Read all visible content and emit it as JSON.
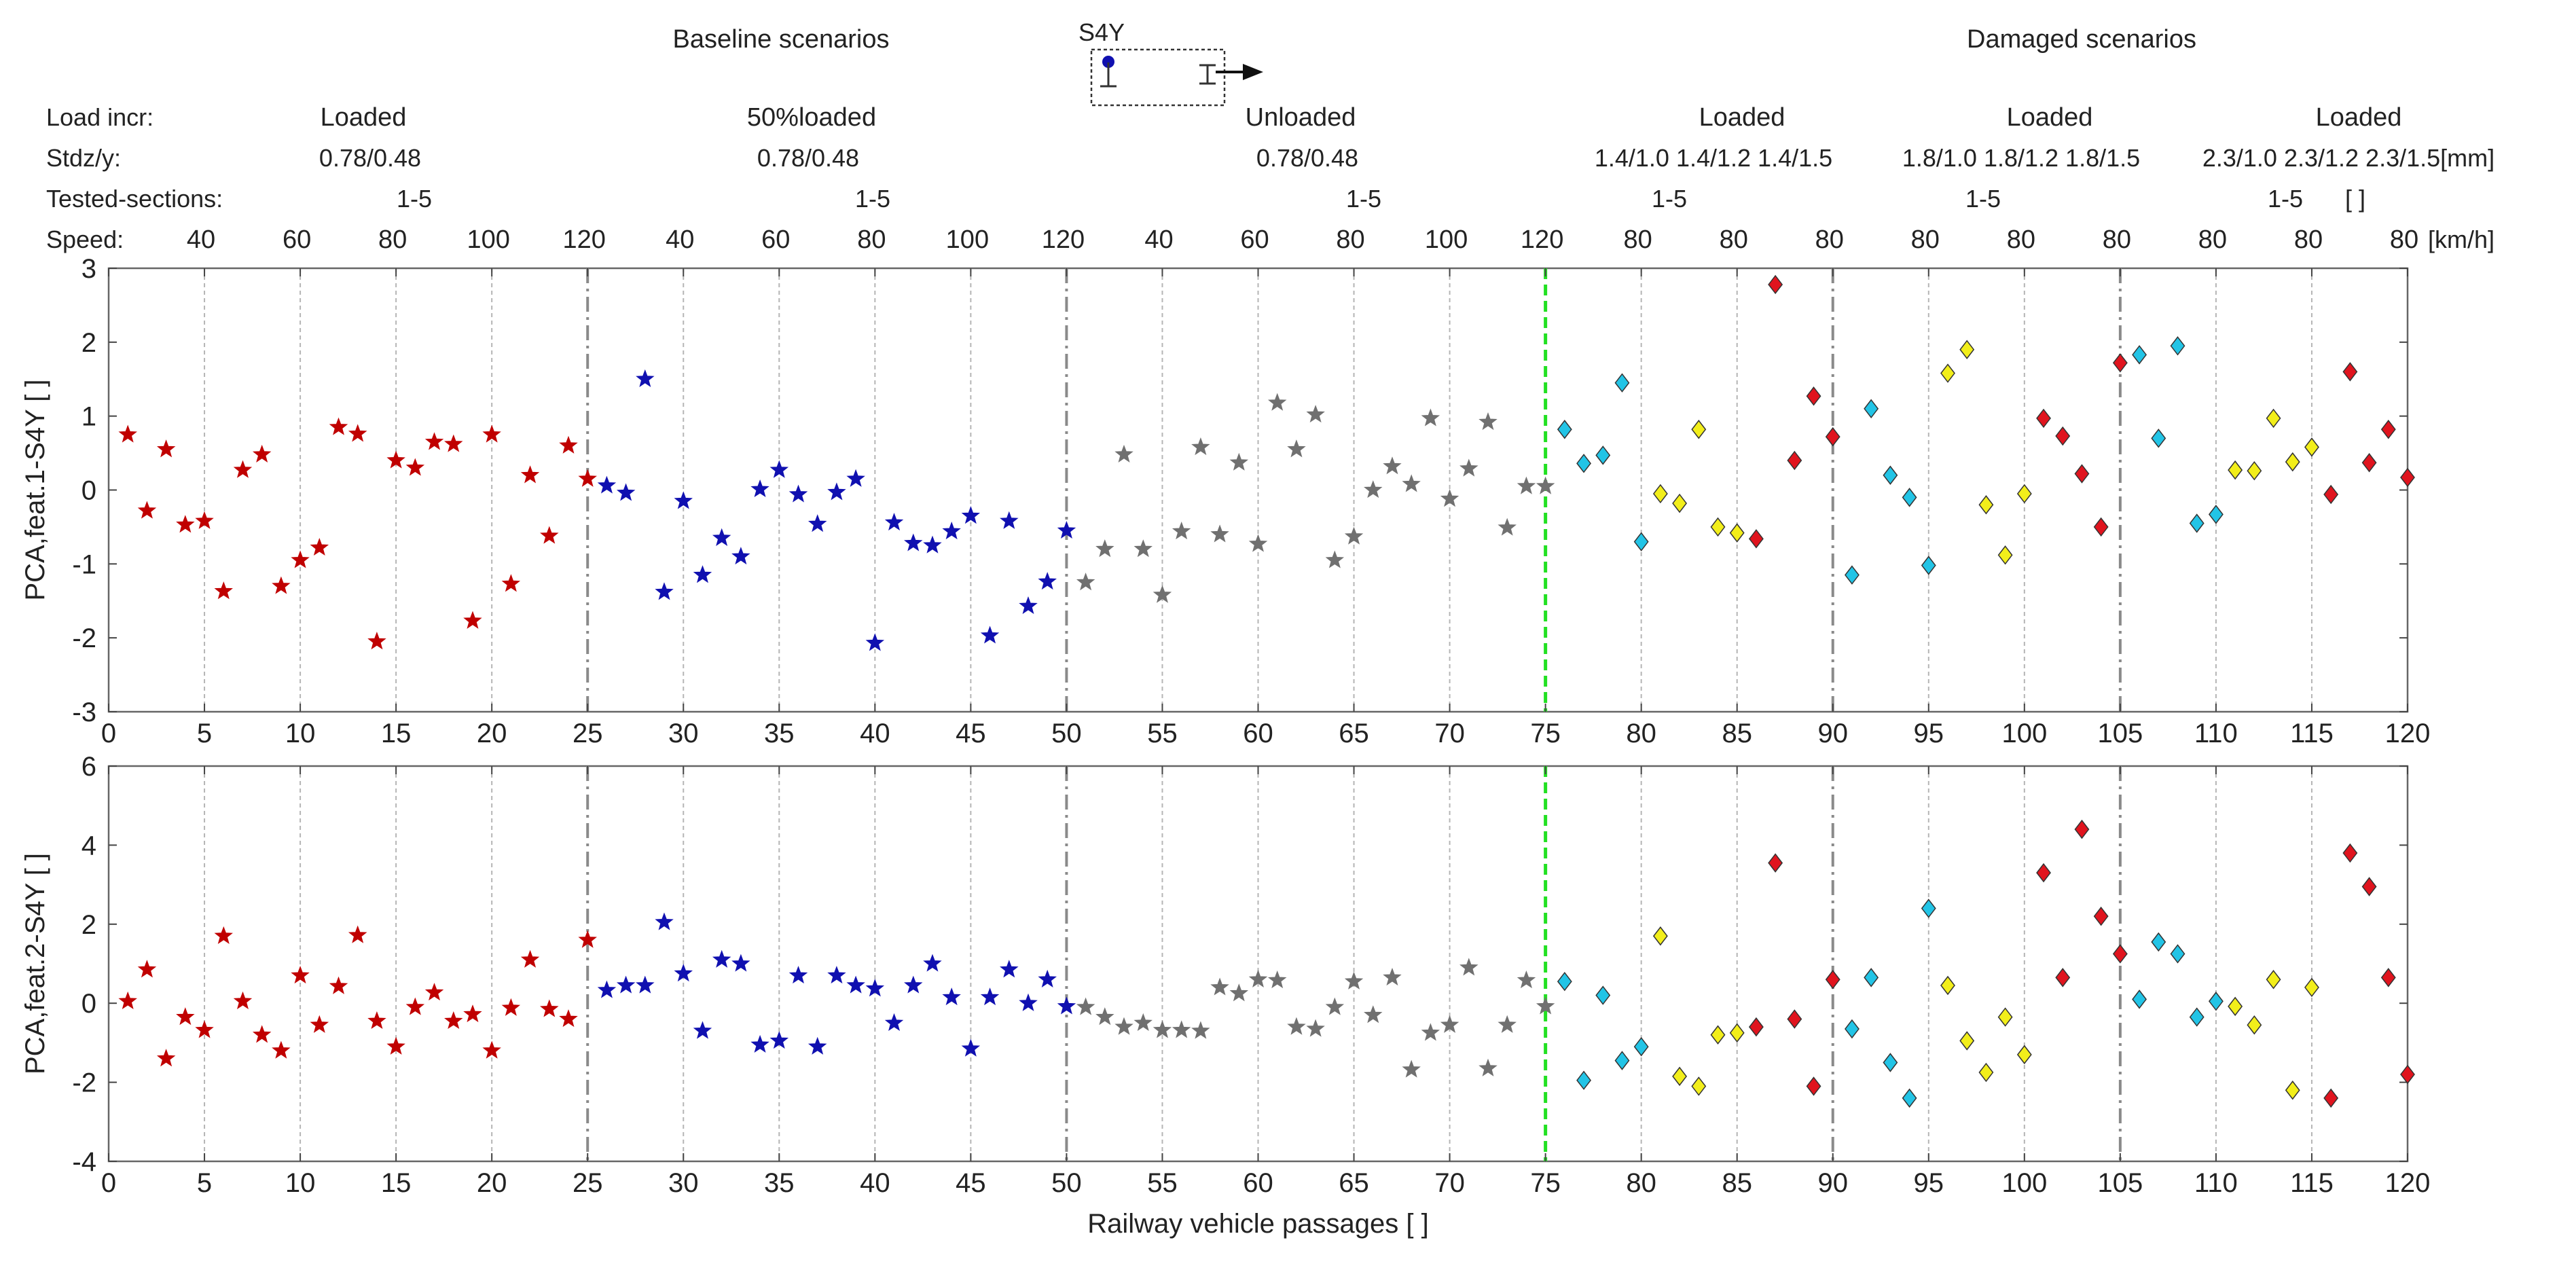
{
  "header": {
    "baseline_title": "Baseline scenarios",
    "damaged_title": "Damaged scenarios",
    "sensor_label": "S4Y",
    "row_labels": {
      "load": "Load incr:",
      "stdz": "Stdz/y:",
      "sections": "Tested-sections:",
      "speed": "Speed:"
    },
    "groups": [
      {
        "load": "Loaded",
        "stdz": "0.78/0.48",
        "sections": "1-5"
      },
      {
        "load": "50%loaded",
        "stdz": "0.78/0.48",
        "sections": "1-5"
      },
      {
        "load": "Unloaded",
        "stdz": "0.78/0.48",
        "sections": "1-5"
      },
      {
        "load": "Loaded",
        "stdz": "1.4/1.0 1.4/1.2 1.4/1.5",
        "sections": "1-5"
      },
      {
        "load": "Loaded",
        "stdz": "1.8/1.0 1.8/1.2 1.8/1.5",
        "sections": "1-5"
      },
      {
        "load": "Loaded",
        "stdz": "2.3/1.0 2.3/1.2 2.3/1.5[mm]",
        "sections": "1-5"
      }
    ],
    "sections_unit": "[ ]",
    "speed_labels": [
      "40",
      "60",
      "80",
      "100",
      "120",
      "40",
      "60",
      "80",
      "100",
      "120",
      "40",
      "60",
      "80",
      "100",
      "120",
      "80",
      "80",
      "80",
      "80",
      "80",
      "80",
      "80",
      "80",
      "80"
    ],
    "speed_unit": "[km/h]"
  },
  "colors": {
    "loaded": "#c00000",
    "half_loaded": "#1010b0",
    "unloaded": "#707070",
    "damage_cyan": "#22c4e6",
    "damage_yellow": "#f2ee1a",
    "damage_red": "#e0141e",
    "threshold": "#22e022"
  },
  "chart_data": [
    {
      "type": "scatter",
      "name": "feat1",
      "title": "",
      "xlabel": "",
      "ylabel": "PCA,feat.1-S4Y [ ]",
      "xlim": [
        0,
        120
      ],
      "ylim": [
        -3,
        3
      ],
      "xticks": [
        0,
        5,
        10,
        15,
        20,
        25,
        30,
        35,
        40,
        45,
        50,
        55,
        60,
        65,
        70,
        75,
        80,
        85,
        90,
        95,
        100,
        105,
        110,
        115,
        120
      ],
      "yticks": [
        -3,
        -2,
        -1,
        0,
        1,
        2,
        3
      ],
      "threshold_x": 75,
      "values": [
        0.75,
        -0.28,
        0.55,
        -0.47,
        -0.42,
        -1.37,
        0.27,
        0.48,
        -1.3,
        -0.95,
        -0.78,
        0.85,
        0.76,
        -2.05,
        0.4,
        0.3,
        0.65,
        0.62,
        -1.77,
        0.75,
        -1.27,
        0.2,
        -0.62,
        0.6,
        0.15,
        0.06,
        -0.04,
        1.5,
        -1.38,
        -0.15,
        -1.15,
        -0.65,
        -0.9,
        0.01,
        0.27,
        -0.06,
        -0.46,
        -0.03,
        0.15,
        -2.07,
        -0.44,
        -0.72,
        -0.75,
        -0.56,
        -0.35,
        -1.97,
        -0.42,
        -1.57,
        -1.24,
        -0.55,
        -1.25,
        -0.8,
        0.48,
        -0.8,
        -1.42,
        -0.56,
        0.58,
        -0.6,
        0.37,
        -0.73,
        1.18,
        0.55,
        1.02,
        -0.95,
        -0.63,
        0.0,
        0.32,
        0.08,
        0.97,
        -0.12,
        0.29,
        0.92,
        -0.51,
        0.05,
        0.05,
        0.82,
        0.36,
        0.47,
        1.45,
        -0.7,
        -0.05,
        -0.18,
        0.82,
        -0.5,
        -0.58,
        -0.66,
        2.78,
        0.4,
        1.27,
        0.72,
        -1.15,
        1.1,
        0.2,
        -0.1,
        -1.02,
        1.58,
        1.9,
        -0.2,
        -0.88,
        -0.05,
        0.97,
        0.73,
        0.22,
        -0.5,
        1.72,
        1.83,
        0.7,
        1.95,
        -0.45,
        -0.33,
        0.27,
        0.26,
        0.97,
        0.38,
        0.58,
        -0.06,
        1.6,
        0.37,
        0.82,
        0.17
      ]
    },
    {
      "type": "scatter",
      "name": "feat2",
      "title": "",
      "xlabel": "Railway vehicle passages [ ]",
      "ylabel": "PCA,feat.2-S4Y [ ]",
      "xlim": [
        0,
        120
      ],
      "ylim": [
        -4,
        6
      ],
      "xticks": [
        0,
        5,
        10,
        15,
        20,
        25,
        30,
        35,
        40,
        45,
        50,
        55,
        60,
        65,
        70,
        75,
        80,
        85,
        90,
        95,
        100,
        105,
        110,
        115,
        120
      ],
      "yticks": [
        -4,
        -2,
        0,
        2,
        4,
        6
      ],
      "threshold_x": 75,
      "values": [
        0.05,
        0.85,
        -1.4,
        -0.35,
        -0.68,
        1.7,
        0.05,
        -0.8,
        -1.2,
        0.7,
        -0.55,
        0.43,
        1.72,
        -0.45,
        -1.1,
        -0.1,
        0.27,
        -0.45,
        -0.28,
        -1.2,
        -0.12,
        1.1,
        -0.15,
        -0.4,
        1.6,
        0.33,
        0.45,
        0.45,
        2.05,
        0.75,
        -0.7,
        1.1,
        1.0,
        -1.05,
        -0.95,
        0.7,
        -1.1,
        0.7,
        0.45,
        0.37,
        -0.5,
        0.45,
        1.0,
        0.15,
        -1.15,
        0.15,
        0.85,
        0.0,
        0.6,
        -0.08,
        -0.1,
        -0.35,
        -0.6,
        -0.5,
        -0.68,
        -0.68,
        -0.7,
        0.4,
        0.25,
        0.6,
        0.58,
        -0.6,
        -0.65,
        -0.1,
        0.55,
        -0.3,
        0.65,
        -1.68,
        -0.75,
        -0.55,
        0.9,
        -1.65,
        -0.55,
        0.58,
        -0.08,
        0.55,
        -1.95,
        0.2,
        -1.45,
        -1.1,
        1.7,
        -1.85,
        -2.1,
        -0.8,
        -0.75,
        -0.6,
        3.55,
        -0.4,
        -2.1,
        0.6,
        -0.65,
        0.65,
        -1.5,
        -2.4,
        2.4,
        0.45,
        -0.95,
        -1.75,
        -0.35,
        -1.3,
        3.3,
        0.65,
        4.4,
        2.2,
        1.25,
        0.1,
        1.55,
        1.25,
        -0.35,
        0.05,
        -0.08,
        -0.55,
        0.6,
        -2.2,
        0.4,
        -2.4,
        3.8,
        2.95,
        0.65,
        -1.8
      ]
    }
  ]
}
